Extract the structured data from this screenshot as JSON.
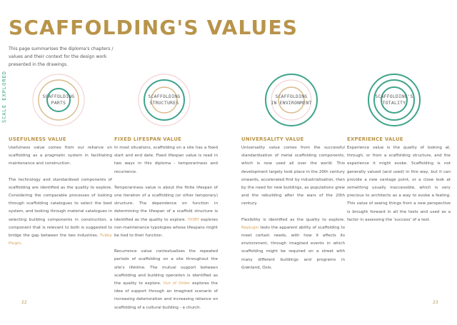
{
  "page": {
    "title": "SCAFFOLDING'S VALUES",
    "intro": "This page summarises the diploma's chapters / values and their context for the design work presented in the drawings.",
    "side_label": "SCALE EXPLORED",
    "page_left": "22",
    "page_right": "23"
  },
  "diagrams": [
    {
      "label": "SCAFFOLDING\nPARTS",
      "label_plain": "SCAFFOLDING PARTS"
    },
    {
      "label": "SCAFFOLDING\nSTRUCTURES",
      "label_plain": "SCAFFOLDING STRUCTURES"
    },
    {
      "label": "SCAFFOLDING\nIN ENVIRONMENT",
      "label_plain": "SCAFFOLDING IN ENVIRONMENT"
    },
    {
      "label": "SCAFFOLDING'S\nTOTALITY",
      "label_plain": "SCAFFOLDING'S TOTALITY"
    }
  ],
  "colors": {
    "title": "#b8944a",
    "ring_green": "#3fa38a",
    "ring_tan": "#d9b98a",
    "ring_pink": "#f3d3d3",
    "highlight": "#d9a35a"
  },
  "sections": {
    "usefulness": {
      "heading": "USEFULNESS VALUE",
      "p1": "Usefulness value comes from our reliance on scaffolding as a pragmatic system in facilitating maintenance and construction.",
      "p2_a": "The technology and standardised components of scaffolding are identified as the quality to explore. Considering the comparable processes of looking through scaffolding catalogues to select the best system, and looking through material catalogues in selecting building components in construction, a component that is relevant to both is suggested to bridge the gap between the two industries. ",
      "p2_link": "Fubby Plugin",
      "p2_b": "."
    },
    "fixed_lifespan": {
      "heading": "FIXED LIFESPAN VALUE",
      "p1": "In most situations, scaffolding on a site has a fixed start and end date. Fixed lifespan value is read in two ways in this diploma - temporariness and recurrence.",
      "p2_a": "Temporariness value is about the finite lifespan of one iteration of a scaffolding (or other temporary) structure. The dependence on function in determining the lifespan of a scaffold structure is identified as the quality to explore. ",
      "p2_link": "YIOBY",
      "p2_b": " explores non-maintenance typologies whose lifespans might be tied to their function.",
      "p3_a": "Recurrence value contextualises the repeated periods of scaffolding on a site throughout the site's lifetime. The mutual support between scaffolding and building operation is identified as the quality to explore. ",
      "p3_link": "Out of Order",
      "p3_b": " explores the idea of support through an imagined scenario of increasing deterioration and increasing reliance on scaffolding of a cultural building - a church."
    },
    "universality": {
      "heading": "UNIVERSALITY VALUE",
      "p1": "Universality value comes from the successful standardisation of metal scaffolding components, which is now used all over the world. This development largely took place in the 20th century onwards, accelerated first by industrialisation, then by the need for new buildings, as populations grew and the rebuilding after the wars of the 20th century.",
      "p2_a": "Flexibility is identified as the quality to explore. ",
      "p2_link": "Replugin",
      "p2_b": " tests the apparent ability of scaffolding to meet certain needs, with how it affects its environment, through imagined events in which scaffolding might be required on a street with many different buildings and programs in Grønland, Oslo."
    },
    "experience": {
      "heading": "EXPERIENCE VALUE",
      "p1": "Experience value is the quality of looking at, through, or from a scaffolding structure, and the experience it might evoke. Scaffolding is not generally valued (and used) in this way, but it can provide a new vantage point, or a close look at something usually inaccessible, which is very precious to architects as a way to evoke a feeling. This value of seeing things from a new perspective is brought forward in all the tests and used as a factor in assessing the 'success' of a test."
    }
  }
}
